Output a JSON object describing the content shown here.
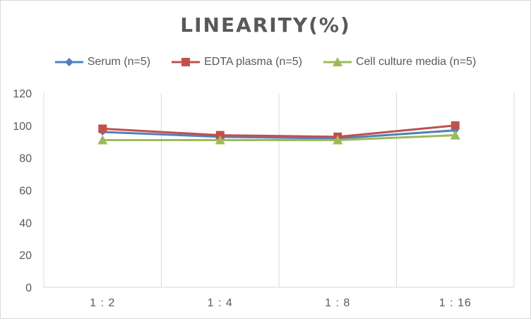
{
  "chart_data": {
    "type": "line",
    "title": "LINEARITY(%)",
    "xlabel": "",
    "ylabel": "",
    "categories": [
      "1:2",
      "1:4",
      "1:8",
      "1:16"
    ],
    "ylim": [
      0,
      120
    ],
    "yticks": [
      0,
      20,
      40,
      60,
      80,
      100,
      120
    ],
    "grid": "vertical",
    "legend": "top",
    "series": [
      {
        "name": "Serum (n=5)",
        "values": [
          96,
          93,
          92,
          97
        ],
        "color": "#4f81bd",
        "marker": "diamond"
      },
      {
        "name": "EDTA plasma (n=5)",
        "values": [
          98,
          94,
          93,
          100
        ],
        "color": "#c0504d",
        "marker": "square"
      },
      {
        "name": "Cell culture media (n=5)",
        "values": [
          91,
          91,
          91,
          94
        ],
        "color": "#9bbb59",
        "marker": "triangle"
      }
    ]
  }
}
